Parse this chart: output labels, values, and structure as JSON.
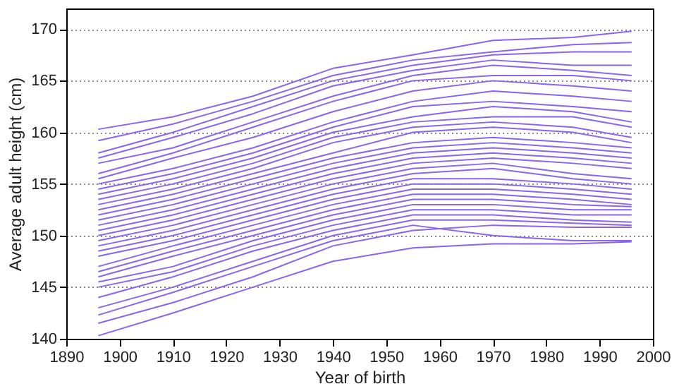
{
  "chart_data": {
    "type": "line",
    "xlabel": "Year of birth",
    "ylabel": "Average adult height (cm)",
    "x": [
      1896,
      1910,
      1925,
      1940,
      1955,
      1970,
      1985,
      1996
    ],
    "xlim": [
      1890,
      2000
    ],
    "xticks": [
      1890,
      1900,
      1910,
      1920,
      1930,
      1940,
      1950,
      1960,
      1970,
      1980,
      1990,
      2000
    ],
    "ylim": [
      140,
      172
    ],
    "yticks": [
      140,
      145,
      150,
      155,
      160,
      165,
      170
    ],
    "grid": "y",
    "legend": false,
    "marker": "none",
    "line_style": "solid",
    "series": [
      {
        "color": "#8a63f5",
        "values": [
          160.3,
          161.5,
          163.5,
          166.2,
          167.5,
          168.9,
          169.2,
          169.8
        ]
      },
      {
        "color": "#8a63f5",
        "values": [
          159.2,
          160.8,
          163,
          165.5,
          167,
          167.8,
          168.5,
          168.7
        ]
      },
      {
        "color": "#8a63f5",
        "values": [
          158,
          160,
          162.5,
          165,
          166.5,
          167.5,
          167.8,
          167.8
        ]
      },
      {
        "color": "#8a63f5",
        "values": [
          157.5,
          159.5,
          161.8,
          164.5,
          166,
          167,
          166.5,
          166.5
        ]
      },
      {
        "color": "#8a63f5",
        "values": [
          157,
          158.5,
          161,
          163.5,
          165.5,
          166.5,
          166,
          165.5
        ]
      },
      {
        "color": "#8a63f5",
        "values": [
          156,
          158,
          160.5,
          163,
          165,
          165.5,
          165.5,
          165
        ]
      },
      {
        "color": "#8a63f5",
        "values": [
          155.5,
          157.5,
          159.5,
          162,
          164,
          165,
          164.5,
          164
        ]
      },
      {
        "color": "#8a63f5",
        "values": [
          155,
          156.5,
          158.5,
          161,
          163,
          164,
          163.5,
          163
        ]
      },
      {
        "color": "#8a63f5",
        "values": [
          154.5,
          156,
          158,
          160.5,
          162.5,
          163,
          162.5,
          162
        ]
      },
      {
        "color": "#8a63f5",
        "values": [
          154,
          155.5,
          157.5,
          160,
          161.5,
          162.5,
          162,
          161
        ]
      },
      {
        "color": "#8a63f5",
        "values": [
          153.5,
          155,
          157,
          159.5,
          161,
          161.5,
          161.5,
          160.5
        ]
      },
      {
        "color": "#8a63f5",
        "values": [
          153,
          154.5,
          156.5,
          159,
          160.5,
          161,
          160.5,
          159.5
        ]
      },
      {
        "color": "#8a63f5",
        "values": [
          152.5,
          154,
          156,
          158,
          160,
          160.5,
          160,
          159
        ]
      },
      {
        "color": "#8a63f5",
        "values": [
          152,
          153.5,
          155.5,
          157.5,
          159,
          159.5,
          159,
          158.5
        ]
      },
      {
        "color": "#8a63f5",
        "values": [
          151.5,
          153,
          155,
          157,
          158.5,
          159,
          158.5,
          158
        ]
      },
      {
        "color": "#8a63f5",
        "values": [
          151,
          152.5,
          154.5,
          156.5,
          158,
          158.5,
          158,
          157.5
        ]
      },
      {
        "color": "#8a63f5",
        "values": [
          150.5,
          152,
          154,
          156,
          157.5,
          158,
          157.5,
          157
        ]
      },
      {
        "color": "#8a63f5",
        "values": [
          150,
          151.5,
          153.5,
          155.5,
          157,
          157.5,
          157,
          156.5
        ]
      },
      {
        "color": "#8a63f5",
        "values": [
          149.5,
          151,
          153,
          155,
          156.5,
          157,
          156,
          155.5
        ]
      },
      {
        "color": "#8a63f5",
        "values": [
          149,
          150.5,
          152.5,
          154.5,
          156,
          156.5,
          155.5,
          155
        ]
      },
      {
        "color": "#8a63f5",
        "values": [
          148.5,
          150,
          152,
          154,
          155.5,
          155.5,
          155,
          154.5
        ]
      },
      {
        "color": "#8a63f5",
        "values": [
          148,
          149.5,
          151.5,
          153.5,
          155,
          155,
          154.5,
          154
        ]
      },
      {
        "color": "#8a63f5",
        "values": [
          147,
          149,
          151,
          153,
          154.5,
          154.5,
          154,
          153.5
        ]
      },
      {
        "color": "#8a63f5",
        "values": [
          146.5,
          148.5,
          150.5,
          152.5,
          154,
          154,
          153.5,
          153
        ]
      },
      {
        "color": "#8a63f5",
        "values": [
          146,
          148,
          150,
          152,
          153.5,
          153.5,
          153,
          152.8
        ]
      },
      {
        "color": "#8a63f5",
        "values": [
          145.5,
          147,
          149.5,
          151.5,
          153,
          153,
          152.5,
          152.5
        ]
      },
      {
        "color": "#8a63f5",
        "values": [
          145,
          146.5,
          149,
          151,
          152.5,
          152.5,
          152,
          152
        ]
      },
      {
        "color": "#8a63f5",
        "values": [
          144,
          146,
          148.5,
          150.5,
          152,
          152,
          151.5,
          151.3
        ]
      },
      {
        "color": "#8a63f5",
        "values": [
          143,
          145,
          147.5,
          150,
          151.5,
          151.5,
          151.2,
          151
        ]
      },
      {
        "color": "#8a63f5",
        "values": [
          142.3,
          144.5,
          147,
          149.5,
          151,
          150,
          149.5,
          149.5
        ]
      },
      {
        "color": "#8a63f5",
        "values": [
          141.5,
          143.5,
          146,
          149,
          150.5,
          151,
          150.8,
          150.8
        ]
      },
      {
        "color": "#8a63f5",
        "values": [
          140.3,
          142.5,
          145,
          147.5,
          148.8,
          149.2,
          149.2,
          149.4
        ]
      }
    ]
  }
}
